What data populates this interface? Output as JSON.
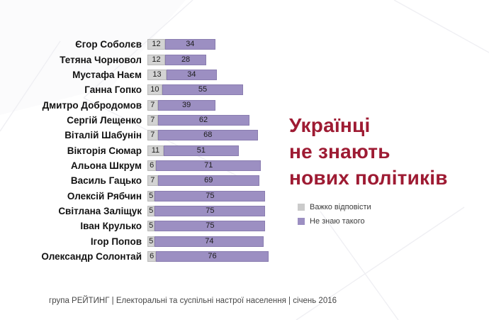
{
  "slide": {
    "title_lines": [
      "Українці",
      "не знають",
      "нових політиків"
    ],
    "title_color": "#9E1B33",
    "footer_text": "група РЕЙТИНГ  |  Електоральні та суспільні настрої населення  |  січень 2016"
  },
  "legend": {
    "items": [
      {
        "label": "Важко відповісти",
        "color": "#CBCBCB"
      },
      {
        "label": "Не знаю такого",
        "color": "#9C8FC2"
      }
    ]
  },
  "chart_data": {
    "type": "bar",
    "orientation": "horizontal",
    "stacked": true,
    "title": "Українці не знають нових політиків",
    "xlabel": "",
    "ylabel": "",
    "xlim": [
      0,
      100
    ],
    "grid": false,
    "legend_position": "right",
    "value_labels": "inside",
    "categories": [
      "Єгор Соболєв",
      "Тетяна Чорновол",
      "Мустафа Наєм",
      "Ганна Гопко",
      "Дмитро Добродомов",
      "Сергій Лещенко",
      "Віталій Шабунін",
      "Вікторія Сюмар",
      "Альона Шкрум",
      "Василь Гацько",
      "Олексій Рябчин",
      "Світлана Заліщук",
      "Іван Крулько",
      "Ігор Попов",
      "Олександр Солонтай"
    ],
    "series": [
      {
        "name": "Важко відповісти",
        "color": "#D3D3D3",
        "border_color": "#B9B9B9",
        "values": [
          12,
          12,
          13,
          10,
          7,
          7,
          7,
          11,
          6,
          7,
          5,
          5,
          5,
          5,
          6
        ]
      },
      {
        "name": "Не знаю такого",
        "color": "#9C8FC2",
        "border_color": "#8A7DB0",
        "values": [
          34,
          28,
          34,
          55,
          39,
          62,
          68,
          51,
          71,
          69,
          75,
          75,
          75,
          74,
          76
        ]
      }
    ]
  }
}
